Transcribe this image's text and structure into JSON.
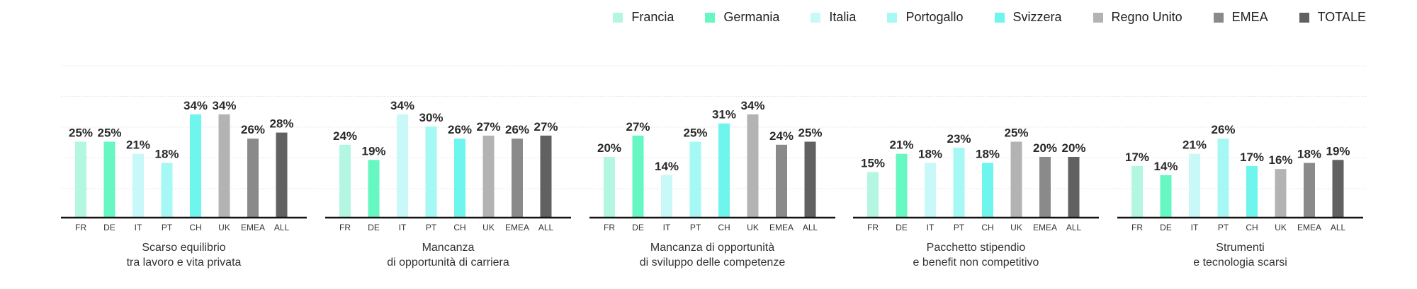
{
  "legend": [
    {
      "label": "Francia",
      "color": "#b3f7e2"
    },
    {
      "label": "Germania",
      "color": "#66f7c2"
    },
    {
      "label": "Italia",
      "color": "#c8f8f8"
    },
    {
      "label": "Portogallo",
      "color": "#a6f8f4"
    },
    {
      "label": "Svizzera",
      "color": "#6ef5ee"
    },
    {
      "label": "Regno Unito",
      "color": "#b3b3b3"
    },
    {
      "label": "EMEA",
      "color": "#8a8a8a"
    },
    {
      "label": "TOTALE",
      "color": "#616161"
    }
  ],
  "chart_data": [
    {
      "type": "bar",
      "title_lines": [
        "Scarso equilibrio",
        "tra lavoro e vita privata"
      ],
      "categories": [
        "FR",
        "DE",
        "IT",
        "PT",
        "CH",
        "UK",
        "EMEA",
        "ALL"
      ],
      "values": [
        25,
        25,
        21,
        18,
        34,
        34,
        26,
        28
      ],
      "value_labels": [
        "25%",
        "25%",
        "21%",
        "18%",
        "34%",
        "34%",
        "26%",
        "28%"
      ],
      "ylim": [
        0,
        50
      ]
    },
    {
      "type": "bar",
      "title_lines": [
        "Mancanza",
        "di opportunità di carriera"
      ],
      "categories": [
        "FR",
        "DE",
        "IT",
        "PT",
        "CH",
        "UK",
        "EMEA",
        "ALL"
      ],
      "values": [
        24,
        19,
        34,
        30,
        26,
        27,
        26,
        27
      ],
      "value_labels": [
        "24%",
        "19%",
        "34%",
        "30%",
        "26%",
        "27%",
        "26%",
        "27%"
      ],
      "ylim": [
        0,
        50
      ]
    },
    {
      "type": "bar",
      "title_lines": [
        "Mancanza di opportunità",
        "di sviluppo delle competenze"
      ],
      "categories": [
        "FR",
        "DE",
        "IT",
        "PT",
        "CH",
        "UK",
        "EMEA",
        "ALL"
      ],
      "values": [
        20,
        27,
        14,
        25,
        31,
        34,
        24,
        25
      ],
      "value_labels": [
        "20%",
        "27%",
        "14%",
        "25%",
        "31%",
        "34%",
        "24%",
        "25%"
      ],
      "ylim": [
        0,
        50
      ]
    },
    {
      "type": "bar",
      "title_lines": [
        "Pacchetto stipendio",
        "e benefit non competitivo"
      ],
      "categories": [
        "FR",
        "DE",
        "IT",
        "PT",
        "CH",
        "UK",
        "EMEA",
        "ALL"
      ],
      "values": [
        15,
        21,
        18,
        23,
        18,
        25,
        20,
        20
      ],
      "value_labels": [
        "15%",
        "21%",
        "18%",
        "23%",
        "18%",
        "25%",
        "20%",
        "20%"
      ],
      "ylim": [
        0,
        50
      ]
    },
    {
      "type": "bar",
      "title_lines": [
        "Strumenti",
        "e tecnologia scarsi"
      ],
      "categories": [
        "FR",
        "DE",
        "IT",
        "PT",
        "CH",
        "UK",
        "EMEA",
        "ALL"
      ],
      "values": [
        17,
        14,
        21,
        26,
        17,
        16,
        18,
        19
      ],
      "value_labels": [
        "17%",
        "14%",
        "21%",
        "26%",
        "17%",
        "16%",
        "18%",
        "19%"
      ],
      "ylim": [
        0,
        50
      ]
    }
  ]
}
